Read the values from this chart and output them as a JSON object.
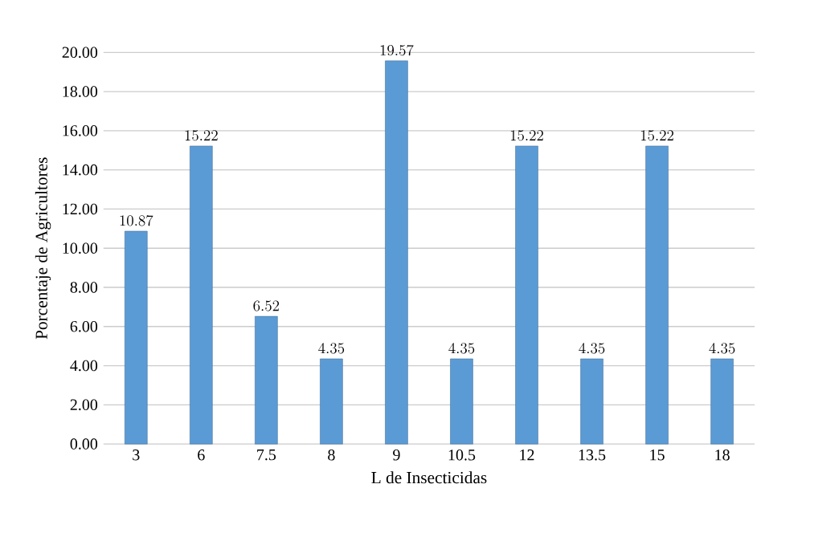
{
  "chart_data": {
    "type": "bar",
    "xlabel": "L de Insecticidas",
    "ylabel": "Porcentaje de Agricultores",
    "categories": [
      "3",
      "6",
      "7.5",
      "8",
      "9",
      "10.5",
      "12",
      "13.5",
      "15",
      "18"
    ],
    "values": [
      10.87,
      15.22,
      6.52,
      4.35,
      19.57,
      4.35,
      15.22,
      4.35,
      15.22,
      4.35
    ],
    "color": "#5b9bd5",
    "ylim": [
      0,
      20
    ],
    "yticks": [
      {
        "value": 0,
        "label": "0.00"
      },
      {
        "value": 2,
        "label": "2.00"
      },
      {
        "value": 4,
        "label": "4.00"
      },
      {
        "value": 6,
        "label": "6.00"
      },
      {
        "value": 8,
        "label": "8.00"
      },
      {
        "value": 10,
        "label": "10.00"
      },
      {
        "value": 12,
        "label": "12.00"
      },
      {
        "value": 14,
        "label": "14.00"
      },
      {
        "value": 16,
        "label": "16.00"
      },
      {
        "value": 18,
        "label": "18.00"
      },
      {
        "value": 20,
        "label": "20.00"
      }
    ],
    "grid": "y",
    "data_labels": true
  }
}
